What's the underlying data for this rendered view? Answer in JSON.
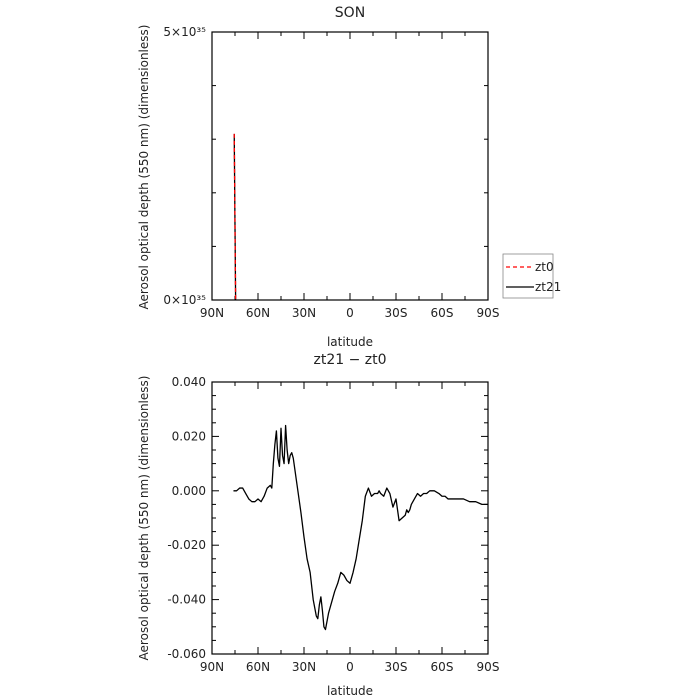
{
  "chart_data": [
    {
      "type": "line",
      "title": "SON",
      "xlabel": "latitude",
      "ylabel": "Aerosol optical depth (550 nm) (dimensionless)",
      "xticks": [
        "90N",
        "60N",
        "30N",
        "0",
        "30S",
        "60S",
        "90S"
      ],
      "yticks": [
        "0×10³⁵",
        "5×10³⁵"
      ],
      "xlim": [
        90,
        -90
      ],
      "ylim": [
        0,
        5e+35
      ],
      "legend": {
        "position": "right",
        "entries": [
          "zt0",
          "zt21"
        ]
      },
      "series": [
        {
          "name": "zt0",
          "color": "#ff0000",
          "dash": true,
          "x": [
            75.5,
            74.6
          ],
          "y": [
            3.1e+35,
            0
          ]
        },
        {
          "name": "zt21",
          "color": "#000000",
          "dash": false,
          "x": [
            75.5,
            74.6
          ],
          "y": [
            3.1e+35,
            0
          ]
        }
      ]
    },
    {
      "type": "line",
      "title": "zt21 − zt0",
      "xlabel": "latitude",
      "ylabel": "Aerosol optical depth (550 nm) (dimensionless)",
      "xticks": [
        "90N",
        "60N",
        "30N",
        "0",
        "30S",
        "60S",
        "90S"
      ],
      "yticks": [
        "0.040",
        "0.020",
        "0.000",
        "-0.020",
        "-0.040",
        "-0.060"
      ],
      "xlim": [
        90,
        -90
      ],
      "ylim": [
        -0.06,
        0.04
      ],
      "series": [
        {
          "name": "",
          "color": "#000000",
          "dash": false,
          "x": [
            76,
            74,
            72,
            70,
            68,
            66,
            64,
            62,
            60,
            58,
            56,
            54,
            52,
            51,
            50,
            49,
            48,
            47,
            46,
            45,
            44,
            43,
            42,
            41,
            40,
            39,
            38,
            37,
            36,
            35,
            34,
            32,
            30,
            28,
            26,
            24,
            22,
            21,
            20,
            19,
            18,
            17,
            16,
            14,
            12,
            10,
            8,
            6,
            4,
            2,
            0,
            -2,
            -4,
            -6,
            -8,
            -10,
            -12,
            -14,
            -16,
            -18,
            -19,
            -20,
            -22,
            -24,
            -26,
            -28,
            -30,
            -32,
            -34,
            -36,
            -37,
            -38,
            -39,
            -40,
            -42,
            -44,
            -46,
            -48,
            -50,
            -52,
            -55,
            -58,
            -60,
            -62,
            -64,
            -66,
            -68,
            -70,
            -74,
            -78,
            -82,
            -86,
            -90
          ],
          "y": [
            0.0,
            0.0,
            0.001,
            0.001,
            -0.001,
            -0.003,
            -0.004,
            -0.004,
            -0.003,
            -0.004,
            -0.002,
            0.001,
            0.002,
            0.001,
            0.01,
            0.017,
            0.022,
            0.012,
            0.009,
            0.023,
            0.013,
            0.01,
            0.024,
            0.015,
            0.01,
            0.013,
            0.014,
            0.012,
            0.008,
            0.004,
            0.0,
            -0.008,
            -0.017,
            -0.025,
            -0.03,
            -0.04,
            -0.046,
            -0.047,
            -0.042,
            -0.039,
            -0.044,
            -0.05,
            -0.051,
            -0.045,
            -0.041,
            -0.037,
            -0.034,
            -0.03,
            -0.031,
            -0.033,
            -0.034,
            -0.03,
            -0.025,
            -0.018,
            -0.011,
            -0.002,
            0.001,
            -0.002,
            -0.001,
            -0.001,
            0.0,
            -0.001,
            -0.002,
            0.001,
            -0.001,
            -0.006,
            -0.003,
            -0.011,
            -0.01,
            -0.009,
            -0.007,
            -0.008,
            -0.007,
            -0.005,
            -0.003,
            -0.001,
            -0.002,
            -0.001,
            -0.001,
            0.0,
            0.0,
            -0.001,
            -0.002,
            -0.002,
            -0.003,
            -0.003,
            -0.003,
            -0.003,
            -0.003,
            -0.004,
            -0.004,
            -0.005,
            -0.005
          ]
        }
      ]
    }
  ]
}
